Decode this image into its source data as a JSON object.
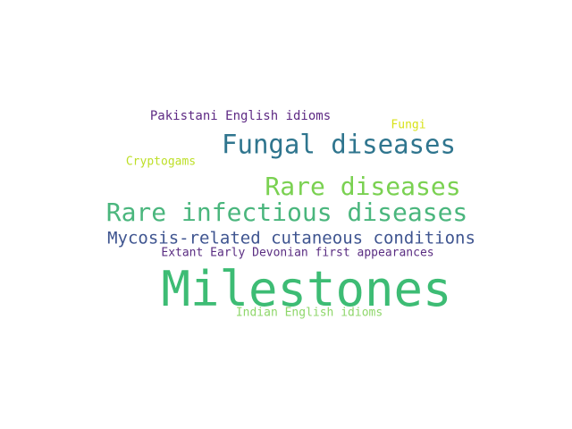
{
  "words": [
    {
      "text": "Milestones",
      "color": "#3dbc74"
    },
    {
      "text": "Fungal diseases",
      "color": "#2f758e"
    },
    {
      "text": "Rare infectious diseases",
      "color": "#4ab67d"
    },
    {
      "text": "Rare diseases",
      "color": "#7ad151"
    },
    {
      "text": "Mycosis-related cutaneous conditions",
      "color": "#3f5590"
    },
    {
      "text": "Extant Early Devonian first appearances",
      "color": "#5a2d82"
    },
    {
      "text": "Pakistani English idioms",
      "color": "#5e2a84"
    },
    {
      "text": "Indian English idioms",
      "color": "#8fd76b"
    },
    {
      "text": "Cryptogams",
      "color": "#bddf26"
    },
    {
      "text": "Fungi",
      "color": "#d8e219"
    }
  ]
}
